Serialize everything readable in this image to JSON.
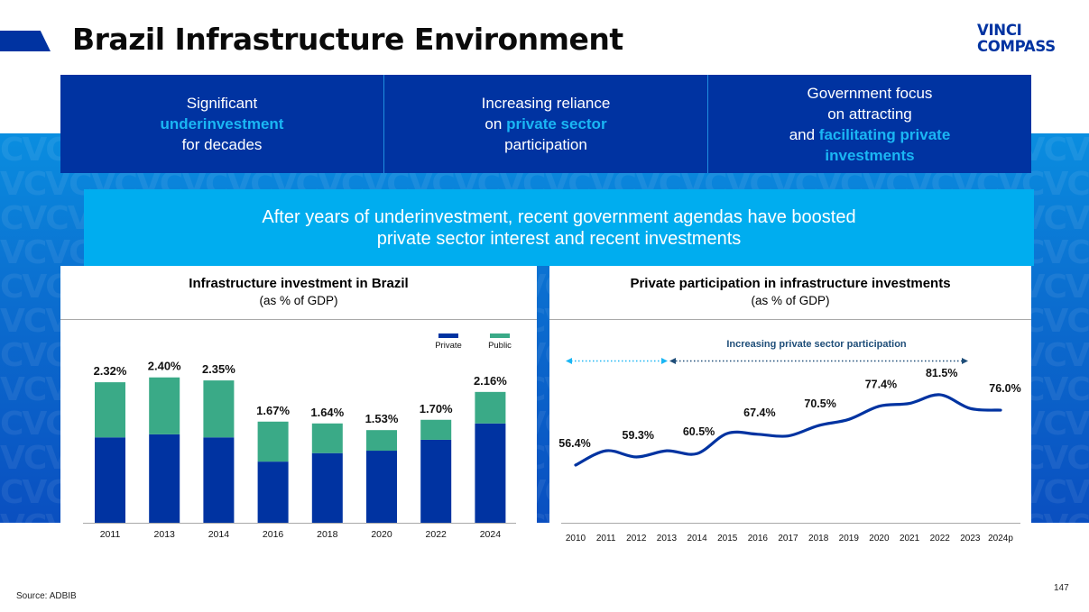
{
  "header": {
    "title": "Brazil Infrastructure Environment",
    "logo_line1": "VINCI",
    "logo_line2": "COMPASS"
  },
  "pillars": [
    {
      "pre": "Significant",
      "highlight": "underinvestment",
      "post": "for decades"
    },
    {
      "pre": "Increasing reliance",
      "mid_plain": "on ",
      "highlight": "private sector",
      "post": "participation"
    },
    {
      "pre": "Government focus",
      "pre2": "on attracting",
      "mid_plain": "and ",
      "highlight": "facilitating private",
      "highlight2": "investments"
    }
  ],
  "banner": {
    "line1": "After years of underinvestment, recent government agendas have boosted",
    "line2": "private sector interest and recent investments"
  },
  "colors": {
    "brand_navy": "#0033a1",
    "accent_cyan": "#00adef",
    "highlight_cyan": "#1ab6f4",
    "public_green": "#3aaa87",
    "arrow_dark": "#1f4e79"
  },
  "footer": {
    "source": "Source: ADBIB",
    "page_number": "147"
  },
  "chart_data": [
    {
      "type": "bar",
      "stacked": true,
      "title": "Infrastructure investment in Brazil",
      "subtitle": "(as % of GDP)",
      "categories": [
        "2011",
        "2013",
        "2014",
        "2016",
        "2018",
        "2020",
        "2022",
        "2024"
      ],
      "series": [
        {
          "name": "Private",
          "color": "#0033a1",
          "values": [
            1.41,
            1.46,
            1.41,
            1.01,
            1.15,
            1.19,
            1.37,
            1.64
          ]
        },
        {
          "name": "Public",
          "color": "#3aaa87",
          "values": [
            0.91,
            0.94,
            0.94,
            0.66,
            0.49,
            0.34,
            0.33,
            0.52
          ]
        }
      ],
      "totals_labels": [
        "2.32%",
        "2.40%",
        "2.35%",
        "1.67%",
        "1.64%",
        "1.53%",
        "1.70%",
        "2.16%"
      ],
      "totals": [
        2.32,
        2.4,
        2.35,
        1.67,
        1.64,
        1.53,
        1.7,
        2.16
      ],
      "legend": [
        "Private",
        "Public"
      ],
      "legend_position": "top-right",
      "xlabel": "",
      "ylabel": "",
      "ylim": [
        0,
        2.6
      ],
      "grid": false
    },
    {
      "type": "line",
      "title": "Private participation in infrastructure investments",
      "subtitle": "(as % of GDP)",
      "x": [
        "2010",
        "2011",
        "2012",
        "2013",
        "2014",
        "2015",
        "2016",
        "2017",
        "2018",
        "2019",
        "2020",
        "2021",
        "2022",
        "2023",
        "2024p"
      ],
      "series": [
        {
          "name": "Private participation",
          "color": "#0033a1",
          "values": [
            56.4,
            61.5,
            59.3,
            61.5,
            60.5,
            67.7,
            67.4,
            66.8,
            70.5,
            72.7,
            77.4,
            78.4,
            81.5,
            76.6,
            76.0
          ]
        }
      ],
      "data_labels": [
        {
          "x": "2010",
          "text": "56.4%"
        },
        {
          "x": "2012",
          "text": "59.3%"
        },
        {
          "x": "2014",
          "text": "60.5%"
        },
        {
          "x": "2016",
          "text": "67.4%"
        },
        {
          "x": "2018",
          "text": "70.5%"
        },
        {
          "x": "2020",
          "text": "77.4%"
        },
        {
          "x": "2022",
          "text": "81.5%"
        },
        {
          "x": "2024p",
          "text": "76.0%"
        }
      ],
      "annotation": "Increasing private sector participation",
      "annotation_ranges": [
        [
          "2010",
          "2013"
        ],
        [
          "2013",
          "2023"
        ]
      ],
      "xlabel": "",
      "ylabel": "",
      "ylim": [
        30,
        90
      ],
      "grid": false
    }
  ]
}
